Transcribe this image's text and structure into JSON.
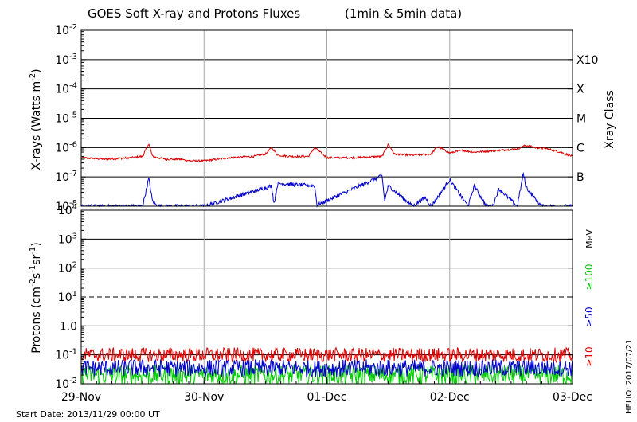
{
  "chart_data": [
    {
      "type": "line",
      "title": "GOES Soft X-ray and Protons Fluxes",
      "title_note": "(1min & 5min data)",
      "ylabel": "X-rays (Watts m",
      "ylabel_sup": "-2",
      "ylabel_close": ")",
      "yscale": "log",
      "ylim": [
        1e-08,
        0.01
      ],
      "y_ticks": [
        {
          "base": "10",
          "exp": "-2",
          "value": 0.01
        },
        {
          "base": "10",
          "exp": "-3",
          "value": 0.001
        },
        {
          "base": "10",
          "exp": "-4",
          "value": 0.0001
        },
        {
          "base": "10",
          "exp": "-5",
          "value": 1e-05
        },
        {
          "base": "10",
          "exp": "-6",
          "value": 1e-06
        },
        {
          "base": "10",
          "exp": "-7",
          "value": 1e-07
        },
        {
          "base": "10",
          "exp": "-8",
          "value": 1e-08
        }
      ],
      "class_axis_label": "Xray Class",
      "classes": [
        {
          "label": "X10",
          "value": 0.001
        },
        {
          "label": "X",
          "value": 0.0001
        },
        {
          "label": "M",
          "value": 1e-05
        },
        {
          "label": "C",
          "value": 1e-06
        },
        {
          "label": "B",
          "value": 1e-07
        }
      ],
      "series": [
        {
          "color": "#dd0000",
          "x": [
            0,
            0.2,
            0.4,
            0.5,
            0.55,
            0.58,
            0.62,
            0.7,
            0.8,
            0.9,
            1.0,
            1.2,
            1.4,
            1.5,
            1.55,
            1.6,
            1.7,
            1.85,
            1.9,
            2.0,
            2.2,
            2.45,
            2.5,
            2.55,
            2.7,
            2.85,
            2.9,
            3.0,
            3.1,
            3.2,
            3.4,
            3.55,
            3.62,
            3.7,
            3.8,
            3.9,
            4.0
          ],
          "y": [
            4.5e-07,
            4e-07,
            4.5e-07,
            5e-07,
            1.4e-06,
            5e-07,
            4.5e-07,
            4e-07,
            4e-07,
            3.5e-07,
            3.5e-07,
            4.5e-07,
            5e-07,
            6e-07,
            1e-06,
            5.5e-07,
            5e-07,
            5e-07,
            1e-06,
            4.5e-07,
            4.5e-07,
            5e-07,
            1.3e-06,
            6e-07,
            5.5e-07,
            6e-07,
            1.1e-06,
            6.5e-07,
            8e-07,
            7e-07,
            8e-07,
            9e-07,
            1.2e-06,
            1e-06,
            9e-07,
            7e-07,
            5e-07
          ]
        },
        {
          "color": "#0000cc",
          "x": [
            0,
            0.5,
            0.55,
            0.58,
            0.62,
            1.0,
            1.55,
            1.57,
            1.6,
            1.9,
            1.92,
            2.45,
            2.47,
            2.5,
            2.7,
            2.8,
            2.85,
            3.0,
            3.15,
            3.2,
            3.3,
            3.35,
            3.4,
            3.55,
            3.6,
            3.62,
            3.65,
            3.75,
            4.0
          ],
          "y": [
            1e-08,
            1e-08,
            9e-08,
            1.5e-08,
            1e-08,
            1e-08,
            5e-08,
            1.2e-08,
            6e-08,
            5e-08,
            1.1e-08,
            1.1e-07,
            1.5e-08,
            5e-08,
            1e-08,
            2e-08,
            1e-08,
            8e-08,
            1e-08,
            5e-08,
            1e-08,
            1e-08,
            4e-08,
            1e-08,
            1.3e-07,
            5e-08,
            3e-08,
            1e-08,
            1e-08
          ]
        }
      ]
    },
    {
      "type": "line",
      "ylabel": "Protons (cm",
      "ylabel_sup1": "-2",
      "ylabel_mid": "s",
      "ylabel_sup2": "-1",
      "ylabel_mid2": "sr",
      "ylabel_sup3": "-1",
      "ylabel_close": ")",
      "yscale": "log",
      "ylim": [
        0.01,
        10000
      ],
      "y_ticks": [
        {
          "base": "10",
          "exp": "4",
          "value": 10000
        },
        {
          "base": "10",
          "exp": "3",
          "value": 1000
        },
        {
          "base": "10",
          "exp": "2",
          "value": 100
        },
        {
          "base": "10",
          "exp": "1",
          "value": 10
        },
        {
          "base": "10",
          "exp": "0",
          "value": 1,
          "display": "1.0"
        },
        {
          "base": "10",
          "exp": "-1",
          "value": 0.1
        },
        {
          "base": "10",
          "exp": "-2",
          "value": 0.01
        }
      ],
      "threshold_value": 10,
      "unit_label": "MeV",
      "series": [
        {
          "name": "≥100",
          "color": "#00cc00",
          "level": 0.02,
          "spread": 0.35
        },
        {
          "name": "≥50",
          "color": "#0000cc",
          "level": 0.035,
          "spread": 0.3
        },
        {
          "name": "≥10",
          "color": "#dd0000",
          "level": 0.1,
          "spread": 0.25
        }
      ],
      "x_tick_labels": [
        "29-Nov",
        "30-Nov",
        "01-Dec",
        "02-Dec",
        "03-Dec"
      ]
    }
  ],
  "start_date": "Start Date: 2013/11/29 00:00 UT",
  "credit": "HELIO: 2017/07/21"
}
